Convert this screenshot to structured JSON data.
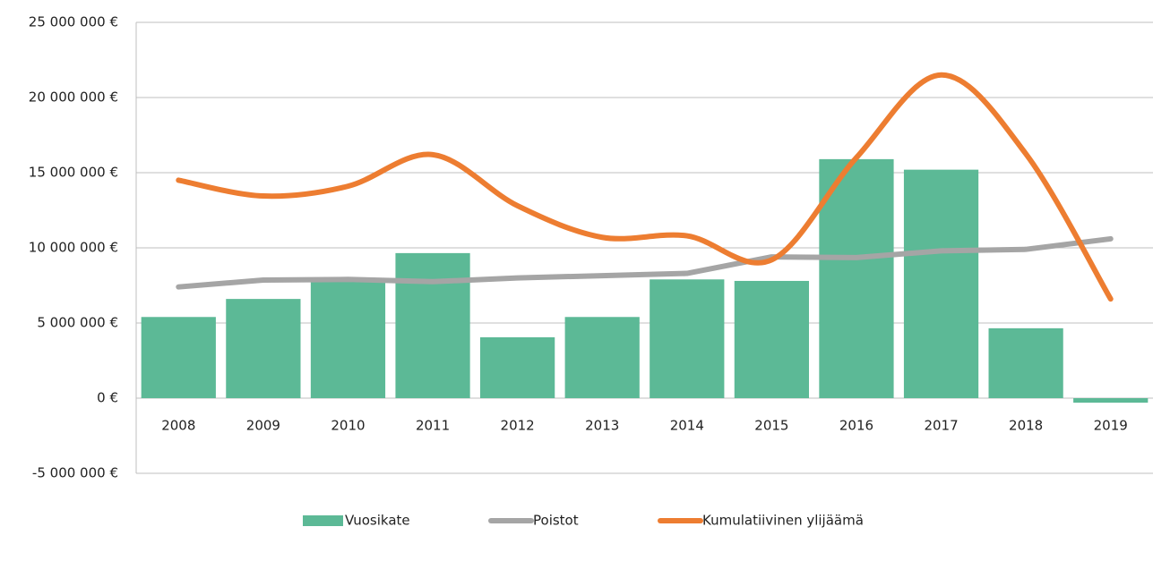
{
  "chart_data": {
    "type": "bar-line",
    "categories": [
      "2008",
      "2009",
      "2010",
      "2011",
      "2012",
      "2013",
      "2014",
      "2015",
      "2016",
      "2017",
      "2018",
      "2019"
    ],
    "series": [
      {
        "name": "Vuosikate",
        "type": "bar",
        "color": "#5cb996",
        "values": [
          5400000,
          6600000,
          8000000,
          9650000,
          4050000,
          5400000,
          7900000,
          7800000,
          15900000,
          15200000,
          4650000,
          -300000
        ]
      },
      {
        "name": "Poistot",
        "type": "line",
        "color": "#a5a5a5",
        "values": [
          7400000,
          7860000,
          7900000,
          7750000,
          8000000,
          8150000,
          8300000,
          9400000,
          9350000,
          9800000,
          9900000,
          10600000
        ]
      },
      {
        "name": "Kumulatiivinen ylijäämä",
        "type": "line",
        "smooth": true,
        "color": "#ed7d31",
        "values": [
          14500000,
          13450000,
          14100000,
          16200000,
          12800000,
          10700000,
          10800000,
          9200000,
          16000000,
          21500000,
          16250000,
          6600000
        ]
      }
    ],
    "ylim": [
      -5000000,
      25000000
    ],
    "yticks": [
      {
        "value": -5000000,
        "label": "-5 000 000 €"
      },
      {
        "value": 0,
        "label": "0 €"
      },
      {
        "value": 5000000,
        "label": "5 000 000 €"
      },
      {
        "value": 10000000,
        "label": "10 000 000 €"
      },
      {
        "value": 15000000,
        "label": "15 000 000 €"
      },
      {
        "value": 20000000,
        "label": "20 000 000 €"
      },
      {
        "value": 25000000,
        "label": "25 000 000 €"
      }
    ],
    "grid": true,
    "legend": "bottom"
  }
}
